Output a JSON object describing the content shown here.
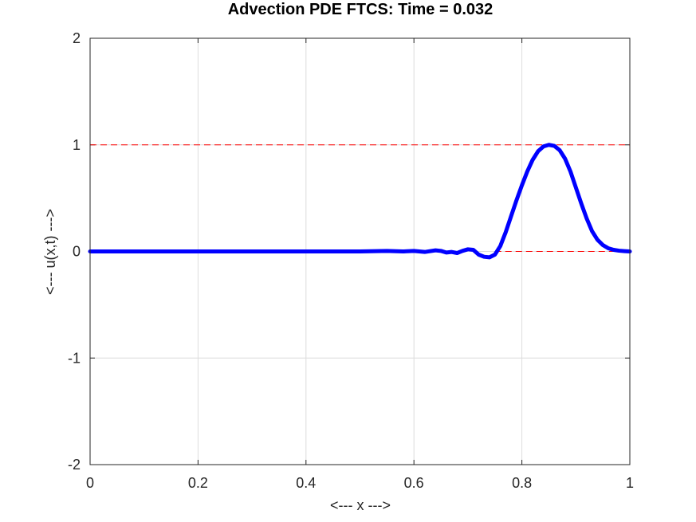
{
  "chart_data": {
    "type": "line",
    "title": "Advection PDE FTCS: Time = 0.032",
    "xlabel": "<--- x --->",
    "ylabel": "<--- u(x,t) --->",
    "xlim": [
      0,
      1
    ],
    "ylim": [
      -2,
      2
    ],
    "xticks": [
      "0",
      "0.2",
      "0.4",
      "0.6",
      "0.8",
      "1"
    ],
    "yticks": [
      "-2",
      "-1",
      "0",
      "1",
      "2"
    ],
    "grid": true,
    "series": [
      {
        "color": "#0000ff",
        "style": "solid-thick",
        "x": [
          0,
          0.05,
          0.1,
          0.15,
          0.2,
          0.25,
          0.3,
          0.35,
          0.4,
          0.45,
          0.5,
          0.55,
          0.58,
          0.6,
          0.62,
          0.64,
          0.65,
          0.66,
          0.67,
          0.68,
          0.69,
          0.7,
          0.71,
          0.72,
          0.73,
          0.74,
          0.75,
          0.76,
          0.77,
          0.78,
          0.79,
          0.8,
          0.81,
          0.82,
          0.83,
          0.84,
          0.85,
          0.86,
          0.87,
          0.88,
          0.89,
          0.9,
          0.91,
          0.92,
          0.93,
          0.94,
          0.95,
          0.96,
          0.97,
          0.98,
          0.99,
          1.0
        ],
        "y": [
          0,
          0,
          0,
          0,
          0,
          0,
          0,
          0,
          0,
          0,
          0,
          0.005,
          0,
          0.005,
          -0.005,
          0.01,
          0.005,
          -0.01,
          -0.005,
          -0.015,
          0.005,
          0.02,
          0.015,
          -0.03,
          -0.05,
          -0.055,
          -0.03,
          0.05,
          0.18,
          0.33,
          0.48,
          0.62,
          0.75,
          0.86,
          0.94,
          0.985,
          1.0,
          0.99,
          0.95,
          0.87,
          0.75,
          0.6,
          0.45,
          0.31,
          0.19,
          0.11,
          0.06,
          0.03,
          0.015,
          0.007,
          0.003,
          0
        ]
      },
      {
        "color": "#ff0000",
        "style": "dashed",
        "x": [
          0,
          1
        ],
        "y": [
          1,
          1
        ]
      },
      {
        "color": "#ff0000",
        "style": "dashed",
        "x": [
          0.75,
          1
        ],
        "y": [
          0,
          0
        ]
      }
    ]
  }
}
